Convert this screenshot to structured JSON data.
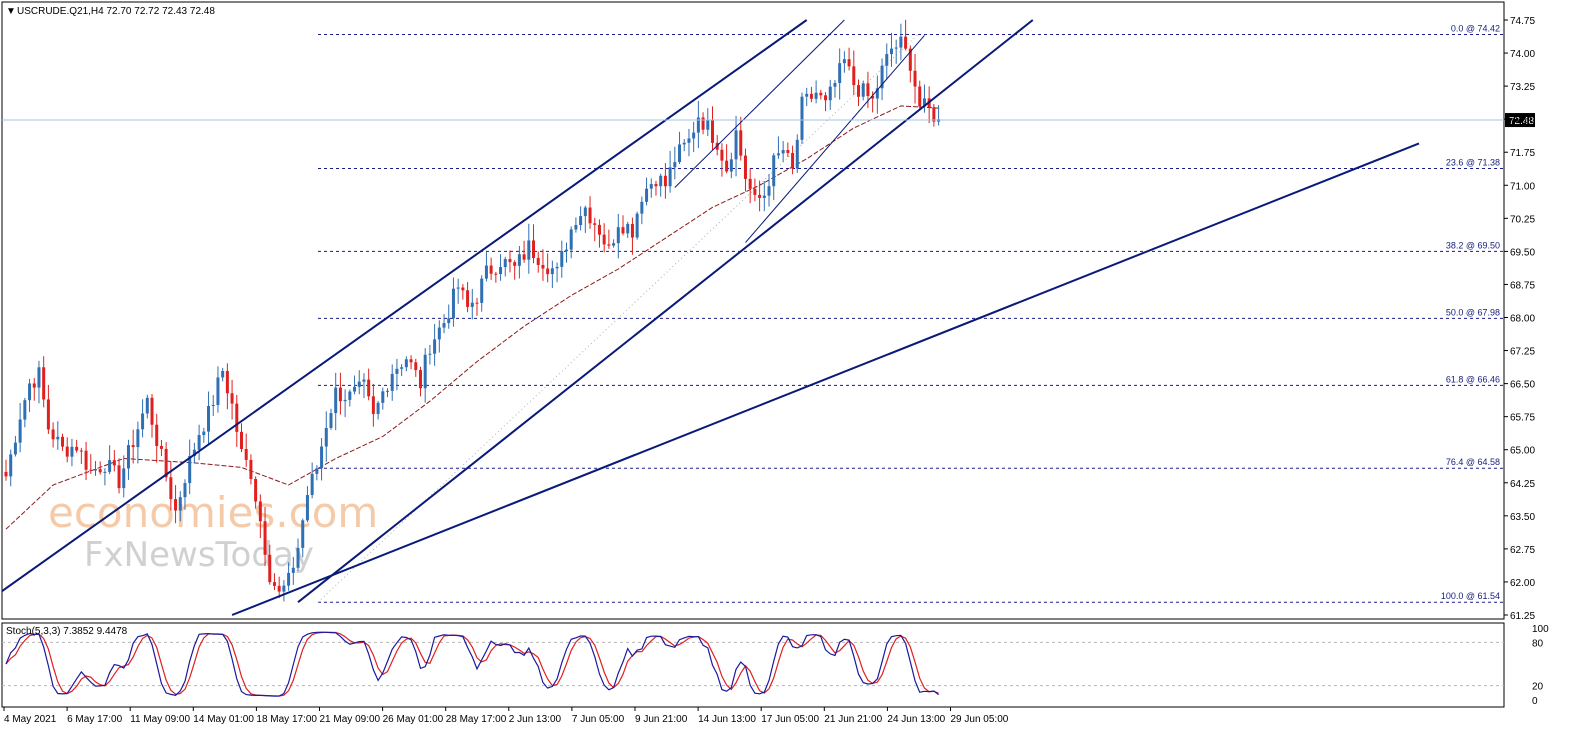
{
  "header": {
    "symbol_line": "USCRUDE.Q21,H4  72.70 72.72 72.43 72.48",
    "stoch_line": "Stoch(5,3,3) 7.3852 9.4478"
  },
  "watermark": {
    "line1": "economies.com",
    "line2": "FxNewsToday"
  },
  "colors": {
    "up_candle": "#2f6fb4",
    "down_candle": "#e0201f",
    "channel": "#0a1a78",
    "fib": "#1a1a8c",
    "ma": "#8b1a1a",
    "stoch_main": "#1a1aa0",
    "stoch_signal": "#e02020",
    "price_line": "#9fc3e6"
  },
  "chart_data": [
    {
      "type": "candlestick",
      "symbol": "USCRUDE.Q21",
      "timeframe": "H4",
      "ohlc_last": {
        "open": 72.7,
        "high": 72.72,
        "low": 72.43,
        "close": 72.48
      },
      "current_price": "72.48",
      "ylim": [
        61.25,
        74.75
      ],
      "y_ticks": [
        "74.75",
        "74.00",
        "73.25",
        "72.50",
        "71.75",
        "71.00",
        "70.25",
        "69.50",
        "68.75",
        "68.00",
        "67.25",
        "66.50",
        "65.75",
        "65.00",
        "64.25",
        "63.50",
        "62.75",
        "62.00",
        "61.25"
      ],
      "x_ticks": [
        "4 May 2021",
        "6 May 17:00",
        "11 May 09:00",
        "14 May 01:00",
        "18 May 17:00",
        "21 May 09:00",
        "26 May 01:00",
        "28 May 17:00",
        "2 Jun 13:00",
        "7 Jun 05:00",
        "9 Jun 21:00",
        "14 Jun 13:00",
        "17 Jun 05:00",
        "21 Jun 21:00",
        "24 Jun 13:00",
        "29 Jun 05:00"
      ],
      "anchor_closes": [
        [
          0,
          64.4
        ],
        [
          3,
          65.8
        ],
        [
          5,
          66.5
        ],
        [
          7,
          66.7
        ],
        [
          9,
          65.5
        ],
        [
          12,
          65.0
        ],
        [
          15,
          65.1
        ],
        [
          18,
          64.5
        ],
        [
          21,
          64.7
        ],
        [
          24,
          64.3
        ],
        [
          27,
          65.2
        ],
        [
          30,
          66.1
        ],
        [
          33,
          64.8
        ],
        [
          36,
          63.6
        ],
        [
          38,
          64.4
        ],
        [
          41,
          65.4
        ],
        [
          43,
          65.8
        ],
        [
          46,
          66.8
        ],
        [
          48,
          66.0
        ],
        [
          50,
          64.9
        ],
        [
          52,
          64.5
        ],
        [
          54,
          63.4
        ],
        [
          56,
          62.2
        ],
        [
          58,
          61.7
        ],
        [
          60,
          62.0
        ],
        [
          62,
          62.8
        ],
        [
          64,
          64.0
        ],
        [
          66,
          64.6
        ],
        [
          68,
          65.6
        ],
        [
          70,
          66.3
        ],
        [
          73,
          66.2
        ],
        [
          76,
          66.4
        ],
        [
          78,
          65.7
        ],
        [
          80,
          66.3
        ],
        [
          82,
          66.8
        ],
        [
          85,
          67.1
        ],
        [
          88,
          66.5
        ],
        [
          90,
          67.4
        ],
        [
          93,
          67.9
        ],
        [
          96,
          68.7
        ],
        [
          98,
          68.2
        ],
        [
          100,
          68.5
        ],
        [
          102,
          69.0
        ],
        [
          105,
          69.3
        ],
        [
          108,
          69.1
        ],
        [
          111,
          69.6
        ],
        [
          114,
          69.3
        ],
        [
          117,
          69.0
        ],
        [
          119,
          69.7
        ],
        [
          121,
          70.3
        ],
        [
          123,
          70.5
        ],
        [
          126,
          70.0
        ],
        [
          128,
          69.5
        ],
        [
          130,
          70.2
        ],
        [
          133,
          70.0
        ],
        [
          135,
          70.8
        ],
        [
          138,
          71.2
        ],
        [
          140,
          71.0
        ],
        [
          142,
          71.6
        ],
        [
          145,
          72.0
        ],
        [
          147,
          72.6
        ],
        [
          149,
          72.3
        ],
        [
          151,
          72.0
        ],
        [
          153,
          71.4
        ],
        [
          155,
          72.2
        ],
        [
          157,
          71.2
        ],
        [
          159,
          70.6
        ],
        [
          161,
          70.8
        ],
        [
          163,
          71.5
        ],
        [
          165,
          71.8
        ],
        [
          167,
          71.3
        ],
        [
          169,
          72.8
        ],
        [
          172,
          73.1
        ],
        [
          174,
          72.8
        ],
        [
          176,
          73.3
        ],
        [
          178,
          73.8
        ],
        [
          180,
          73.3
        ],
        [
          182,
          73.1
        ],
        [
          184,
          72.9
        ],
        [
          186,
          73.6
        ],
        [
          188,
          74.1
        ],
        [
          190,
          74.2
        ],
        [
          192,
          73.8
        ],
        [
          194,
          72.8
        ],
        [
          196,
          72.7
        ],
        [
          198,
          72.5
        ]
      ],
      "moving_average_anchors": [
        [
          0,
          63.2
        ],
        [
          10,
          64.2
        ],
        [
          25,
          64.8
        ],
        [
          40,
          64.7
        ],
        [
          50,
          64.6
        ],
        [
          60,
          64.2
        ],
        [
          70,
          64.8
        ],
        [
          80,
          65.3
        ],
        [
          90,
          66.1
        ],
        [
          100,
          67.0
        ],
        [
          110,
          67.8
        ],
        [
          120,
          68.5
        ],
        [
          130,
          69.1
        ],
        [
          140,
          69.8
        ],
        [
          150,
          70.5
        ],
        [
          160,
          71.0
        ],
        [
          170,
          71.6
        ],
        [
          180,
          72.3
        ],
        [
          190,
          72.8
        ],
        [
          198,
          72.75
        ]
      ],
      "fibonacci": [
        {
          "label": "0.0 @ 74.42",
          "value": 74.42
        },
        {
          "label": "23.6 @ 71.38",
          "value": 71.38
        },
        {
          "label": "38.2 @ 69.50",
          "value": 69.5
        },
        {
          "label": "50.0 @ 67.98",
          "value": 67.98
        },
        {
          "label": "61.8 @ 66.46",
          "value": 66.46
        },
        {
          "label": "76.4 @ 64.58",
          "value": 64.58
        },
        {
          "label": "100.0 @ 61.54",
          "value": 61.54
        }
      ],
      "trendlines": [
        {
          "from": [
            -8,
            61.25
          ],
          "to": [
            170,
            74.75
          ]
        },
        {
          "from": [
            62,
            61.54
          ],
          "to": [
            218,
            74.75
          ]
        },
        {
          "from": [
            48,
            61.25
          ],
          "to": [
            300,
            71.95
          ]
        },
        {
          "from": [
            142,
            70.95
          ],
          "to": [
            178,
            74.75
          ]
        },
        {
          "from": [
            157,
            69.7
          ],
          "to": [
            195,
            74.4
          ]
        }
      ],
      "stochastic": {
        "name": "Stoch(5,3,3)",
        "main": 7.3852,
        "signal": 9.4478,
        "levels": [
          20,
          80
        ],
        "y_ticks": [
          "100",
          "80",
          "20",
          "0"
        ]
      }
    }
  ]
}
